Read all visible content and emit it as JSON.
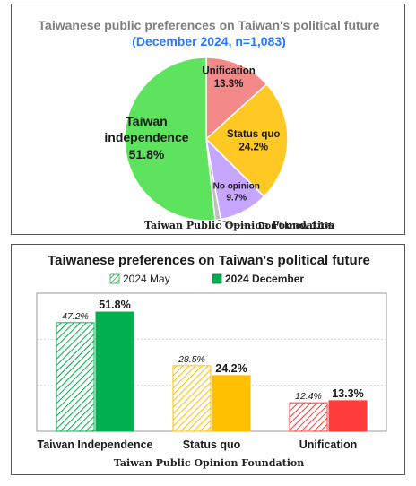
{
  "chart_data": [
    {
      "type": "pie",
      "title": "Taiwanese public preferences on Taiwan's political future",
      "subtitle": "(December 2024, n=1,083)",
      "source": "Taiwan Public Opinion Foundation",
      "slices": [
        {
          "label": "Unification",
          "value": 13.3,
          "value_label": "13.3%",
          "color": "#f4898a"
        },
        {
          "label": "Status quo",
          "value": 24.2,
          "value_label": "24.2%",
          "color": "#ffc823"
        },
        {
          "label": "No opinion",
          "value": 9.7,
          "value_label": "9.7%",
          "color": "#c7a6ff"
        },
        {
          "label": "Don't know",
          "value": 1.1,
          "value_label": "1.1%",
          "color": "#bfbfbf"
        },
        {
          "label": "Taiwan independence",
          "value": 51.8,
          "value_label": "51.8%",
          "color": "#5ee35e"
        }
      ]
    },
    {
      "type": "bar",
      "title": "Taiwanese preferences on Taiwan's political future",
      "source": "Taiwan Public Opinion Foundation",
      "categories": [
        "Taiwan Independence",
        "Status quo",
        "Unification"
      ],
      "series": [
        {
          "name": "2024 May",
          "values": [
            47.2,
            28.5,
            12.4
          ],
          "labels": [
            "47.2%",
            "28.5%",
            "12.4%"
          ]
        },
        {
          "name": "2024 December",
          "values": [
            51.8,
            24.2,
            13.3
          ],
          "labels": [
            "51.8%",
            "24.2%",
            "13.3%"
          ]
        }
      ],
      "colors": {
        "Taiwan Independence": "#00b050",
        "Status quo": "#ffc000",
        "Unification": "#ff3b3b"
      },
      "ylim": [
        0,
        60
      ],
      "grid": true,
      "legend_position": "top"
    }
  ]
}
